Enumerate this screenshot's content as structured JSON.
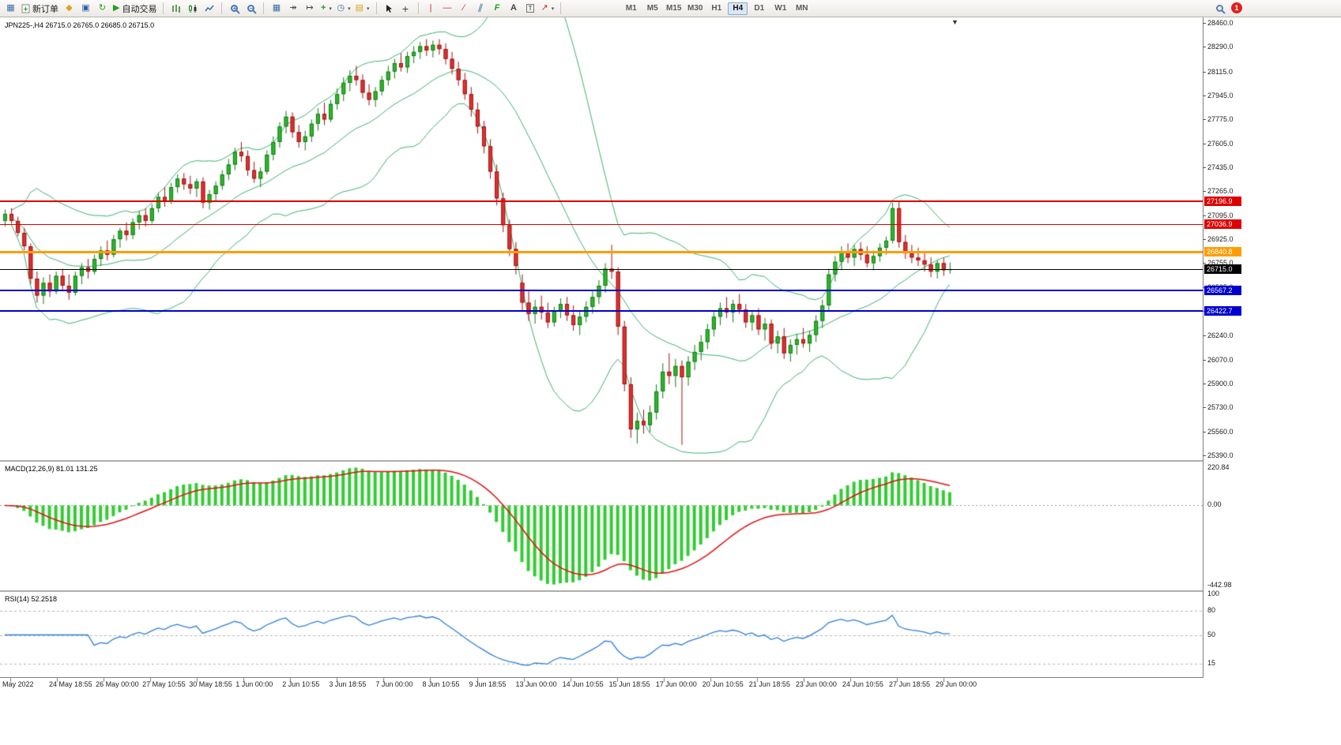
{
  "toolbar": {
    "new_order_label": "新订单",
    "autotrading_label": "自动交易",
    "timeframes": [
      "M1",
      "M5",
      "M15",
      "M30",
      "H1",
      "H4",
      "D1",
      "W1",
      "MN"
    ],
    "active_timeframe": "H4",
    "notification_count": "1"
  },
  "icons": {
    "new_chart": "▦",
    "metaeditor": "◆",
    "market_watch": "▣",
    "refresh": "↻",
    "autotrading_play": "▶",
    "tile_windows": "▦",
    "autoscroll": "↠",
    "chart_shift": "↦",
    "indicators_plus": "+",
    "clock": "◷",
    "template": "▤",
    "crosshair": "+",
    "vline": "|",
    "hline": "―",
    "trendline": "∕",
    "channel": "∥",
    "fibonacci": "F",
    "text": "A",
    "arrow_shapes": "↗",
    "caret": "▾",
    "shift_marker": "▼"
  },
  "chart": {
    "symbol_label": "JPN225-,H4 26715.0 26765.0 26685.0 26715.0",
    "y_ticks": [
      "28460.0",
      "28290.0",
      "28115.0",
      "27945.0",
      "27775.0",
      "27605.0",
      "27435.0",
      "27265.0",
      "27095.0",
      "26925.0",
      "26755.0",
      "26585.0",
      "26415.0",
      "26240.0",
      "26070.0",
      "25900.0",
      "25730.0",
      "25560.0",
      "25390.0"
    ],
    "hlines": [
      {
        "price": 27196.9,
        "label": "27196.9",
        "color": "#dd0000",
        "width": 2
      },
      {
        "price": 27036.9,
        "label": "27036.9",
        "color": "#dd0000",
        "width": 1
      },
      {
        "price": 26840.8,
        "label": "26840.8",
        "color": "#ff9d00",
        "width": 3
      },
      {
        "price": 26715.0,
        "label": "26715.0",
        "color": "#000000",
        "width": 1
      },
      {
        "price": 26567.2,
        "label": "26567.2",
        "color": "#0000cc",
        "width": 2
      },
      {
        "price": 26422.7,
        "label": "26422.7",
        "color": "#0000cc",
        "width": 2
      }
    ],
    "x_labels": [
      "May 2022",
      "24 May 18:55",
      "26 May 00:00",
      "27 May 10:55",
      "30 May 18:55",
      "1 Jun 00:00",
      "2 Jun 10:55",
      "3 Jun 18:55",
      "7 Jun 00:00",
      "8 Jun 10:55",
      "9 Jun 18:55",
      "13 Jun 00:00",
      "14 Jun 10:55",
      "15 Jun 18:55",
      "17 Jun 00:00",
      "20 Jun 10:55",
      "21 Jun 18:55",
      "23 Jun 00:00",
      "24 Jun 10:55",
      "27 Jun 18:55",
      "29 Jun 00:00"
    ],
    "macd": {
      "label": "MACD(12,26,9) 81.01 131.25",
      "scale_max": "220.84",
      "scale_zero": "0.00",
      "scale_min": "-442.98"
    },
    "rsi": {
      "label": "RSI(14) 52.2518",
      "levels": [
        80,
        50,
        15
      ],
      "level_labels": [
        "100",
        "80",
        "50",
        "15"
      ]
    }
  },
  "chart_data": {
    "type": "candlestick",
    "symbol": "JPN225-",
    "timeframe": "H4",
    "last_ohlc": {
      "open": 26715.0,
      "high": 26765.0,
      "low": 26685.0,
      "close": 26715.0
    },
    "ylim": [
      25362,
      28494
    ],
    "overlays": [
      {
        "type": "bollinger_bands",
        "period": 20,
        "deviation": 2,
        "color": "#3cb371"
      }
    ],
    "indicators": [
      {
        "type": "macd",
        "fast": 12,
        "slow": 26,
        "signal": 9,
        "value": 81.01,
        "signal_value": 131.25,
        "range": [
          -442.98,
          220.84
        ]
      },
      {
        "type": "rsi",
        "period": 14,
        "value": 52.2518,
        "levels": [
          15,
          50,
          80
        ]
      }
    ],
    "ohlc": [
      [
        27060,
        27140,
        27020,
        27110
      ],
      [
        27110,
        27150,
        27040,
        27060
      ],
      [
        27060,
        27090,
        26950,
        26975
      ],
      [
        26975,
        27010,
        26850,
        26880
      ],
      [
        26880,
        26900,
        26610,
        26650
      ],
      [
        26650,
        26700,
        26480,
        26530
      ],
      [
        26530,
        26660,
        26470,
        26620
      ],
      [
        26620,
        26680,
        26520,
        26560
      ],
      [
        26560,
        26700,
        26540,
        26670
      ],
      [
        26670,
        26720,
        26560,
        26600
      ],
      [
        26600,
        26680,
        26500,
        26550
      ],
      [
        26550,
        26700,
        26530,
        26670
      ],
      [
        26670,
        26760,
        26610,
        26730
      ],
      [
        26730,
        26790,
        26650,
        26700
      ],
      [
        26700,
        26820,
        26680,
        26790
      ],
      [
        26790,
        26880,
        26740,
        26850
      ],
      [
        26850,
        26920,
        26780,
        26820
      ],
      [
        26820,
        26960,
        26800,
        26930
      ],
      [
        26930,
        27010,
        26870,
        26990
      ],
      [
        26990,
        27050,
        26920,
        26960
      ],
      [
        26960,
        27080,
        26930,
        27050
      ],
      [
        27050,
        27130,
        27000,
        27100
      ],
      [
        27100,
        27150,
        27020,
        27060
      ],
      [
        27060,
        27180,
        27040,
        27150
      ],
      [
        27150,
        27260,
        27120,
        27230
      ],
      [
        27230,
        27300,
        27160,
        27200
      ],
      [
        27200,
        27330,
        27180,
        27300
      ],
      [
        27300,
        27390,
        27260,
        27360
      ],
      [
        27360,
        27400,
        27280,
        27320
      ],
      [
        27320,
        27380,
        27250,
        27290
      ],
      [
        27290,
        27360,
        27230,
        27340
      ],
      [
        27340,
        27370,
        27150,
        27190
      ],
      [
        27190,
        27280,
        27140,
        27250
      ],
      [
        27250,
        27340,
        27200,
        27310
      ],
      [
        27310,
        27420,
        27280,
        27390
      ],
      [
        27390,
        27500,
        27350,
        27460
      ],
      [
        27460,
        27580,
        27420,
        27550
      ],
      [
        27550,
        27620,
        27480,
        27520
      ],
      [
        27520,
        27560,
        27380,
        27420
      ],
      [
        27420,
        27480,
        27330,
        27360
      ],
      [
        27360,
        27440,
        27300,
        27410
      ],
      [
        27410,
        27560,
        27390,
        27530
      ],
      [
        27530,
        27660,
        27490,
        27620
      ],
      [
        27620,
        27760,
        27580,
        27730
      ],
      [
        27730,
        27840,
        27680,
        27800
      ],
      [
        27800,
        27830,
        27650,
        27690
      ],
      [
        27690,
        27740,
        27580,
        27620
      ],
      [
        27620,
        27700,
        27560,
        27660
      ],
      [
        27660,
        27780,
        27620,
        27750
      ],
      [
        27750,
        27860,
        27700,
        27820
      ],
      [
        27820,
        27900,
        27740,
        27780
      ],
      [
        27780,
        27920,
        27760,
        27890
      ],
      [
        27890,
        28000,
        27850,
        27960
      ],
      [
        27960,
        28080,
        27910,
        28040
      ],
      [
        28040,
        28130,
        27980,
        28090
      ],
      [
        28090,
        28160,
        28020,
        28060
      ],
      [
        28060,
        28100,
        27930,
        27970
      ],
      [
        27970,
        28030,
        27880,
        27920
      ],
      [
        27920,
        28010,
        27870,
        27980
      ],
      [
        27980,
        28090,
        27950,
        28060
      ],
      [
        28060,
        28160,
        28020,
        28120
      ],
      [
        28120,
        28210,
        28070,
        28180
      ],
      [
        28180,
        28250,
        28120,
        28150
      ],
      [
        28150,
        28260,
        28110,
        28230
      ],
      [
        28230,
        28300,
        28180,
        28260
      ],
      [
        28260,
        28330,
        28210,
        28300
      ],
      [
        28300,
        28350,
        28230,
        28270
      ],
      [
        28270,
        28340,
        28220,
        28310
      ],
      [
        28310,
        28350,
        28240,
        28280
      ],
      [
        28280,
        28320,
        28170,
        28210
      ],
      [
        28210,
        28260,
        28100,
        28140
      ],
      [
        28140,
        28190,
        28020,
        28060
      ],
      [
        28060,
        28110,
        27920,
        27960
      ],
      [
        27960,
        28010,
        27800,
        27850
      ],
      [
        27850,
        27900,
        27680,
        27730
      ],
      [
        27730,
        27770,
        27540,
        27590
      ],
      [
        27590,
        27640,
        27360,
        27410
      ],
      [
        27410,
        27460,
        27170,
        27220
      ],
      [
        27220,
        27260,
        26980,
        27030
      ],
      [
        27030,
        27070,
        26810,
        26860
      ],
      [
        26860,
        26910,
        26680,
        26740
      ],
      [
        26620,
        26680,
        26420,
        26480
      ],
      [
        26480,
        26560,
        26350,
        26400
      ],
      [
        26400,
        26500,
        26330,
        26450
      ],
      [
        26450,
        26530,
        26360,
        26410
      ],
      [
        26410,
        26480,
        26300,
        26340
      ],
      [
        26340,
        26450,
        26310,
        26420
      ],
      [
        26420,
        26510,
        26370,
        26470
      ],
      [
        26470,
        26520,
        26350,
        26390
      ],
      [
        26390,
        26460,
        26280,
        26320
      ],
      [
        26320,
        26420,
        26250,
        26380
      ],
      [
        26380,
        26490,
        26340,
        26450
      ],
      [
        26450,
        26560,
        26400,
        26520
      ],
      [
        26520,
        26640,
        26470,
        26600
      ],
      [
        26600,
        26760,
        26550,
        26720
      ],
      [
        26720,
        26890,
        26650,
        26700
      ],
      [
        26700,
        26730,
        26250,
        26310
      ],
      [
        26310,
        26350,
        25850,
        25900
      ],
      [
        25900,
        25950,
        25520,
        25580
      ],
      [
        25580,
        25700,
        25480,
        25640
      ],
      [
        25640,
        25720,
        25550,
        25610
      ],
      [
        25610,
        25750,
        25560,
        25700
      ],
      [
        25700,
        25900,
        25650,
        25850
      ],
      [
        25850,
        26050,
        25800,
        25990
      ],
      [
        25990,
        26120,
        25900,
        25960
      ],
      [
        25960,
        26080,
        25880,
        26030
      ],
      [
        26030,
        26070,
        25470,
        25950
      ],
      [
        25950,
        26100,
        25890,
        26060
      ],
      [
        26060,
        26180,
        26000,
        26130
      ],
      [
        26130,
        26250,
        26070,
        26200
      ],
      [
        26200,
        26330,
        26150,
        26290
      ],
      [
        26290,
        26420,
        26240,
        26380
      ],
      [
        26380,
        26480,
        26320,
        26440
      ],
      [
        26440,
        26520,
        26370,
        26410
      ],
      [
        26410,
        26500,
        26340,
        26470
      ],
      [
        26470,
        26540,
        26400,
        26430
      ],
      [
        26430,
        26470,
        26300,
        26340
      ],
      [
        26340,
        26420,
        26280,
        26390
      ],
      [
        26390,
        26440,
        26250,
        26290
      ],
      [
        26290,
        26370,
        26210,
        26330
      ],
      [
        26330,
        26360,
        26150,
        26190
      ],
      [
        26190,
        26280,
        26120,
        26240
      ],
      [
        26240,
        26300,
        26080,
        26120
      ],
      [
        26120,
        26220,
        26060,
        26180
      ],
      [
        26180,
        26260,
        26110,
        26220
      ],
      [
        26220,
        26300,
        26160,
        26190
      ],
      [
        26190,
        26280,
        26130,
        26250
      ],
      [
        26250,
        26390,
        26200,
        26350
      ],
      [
        26350,
        26500,
        26300,
        26460
      ],
      [
        26460,
        26720,
        26420,
        26680
      ],
      [
        26680,
        26810,
        26630,
        26770
      ],
      [
        26770,
        26880,
        26710,
        26840
      ],
      [
        26840,
        26900,
        26760,
        26800
      ],
      [
        26800,
        26890,
        26740,
        26860
      ],
      [
        26860,
        26910,
        26780,
        26820
      ],
      [
        26820,
        26880,
        26730,
        26760
      ],
      [
        26760,
        26850,
        26710,
        26810
      ],
      [
        26810,
        26900,
        26770,
        26870
      ],
      [
        26870,
        26950,
        26820,
        26920
      ],
      [
        26920,
        27190,
        26900,
        27150
      ],
      [
        27150,
        27200,
        26870,
        26910
      ],
      [
        26910,
        26960,
        26790,
        26830
      ],
      [
        26830,
        26890,
        26760,
        26800
      ],
      [
        26800,
        26870,
        26740,
        26780
      ],
      [
        26780,
        26840,
        26700,
        26750
      ],
      [
        26750,
        26800,
        26660,
        26700
      ],
      [
        26700,
        26780,
        26650,
        26760
      ],
      [
        26760,
        26800,
        26670,
        26710
      ],
      [
        26715,
        26765,
        26685,
        26715
      ]
    ]
  }
}
